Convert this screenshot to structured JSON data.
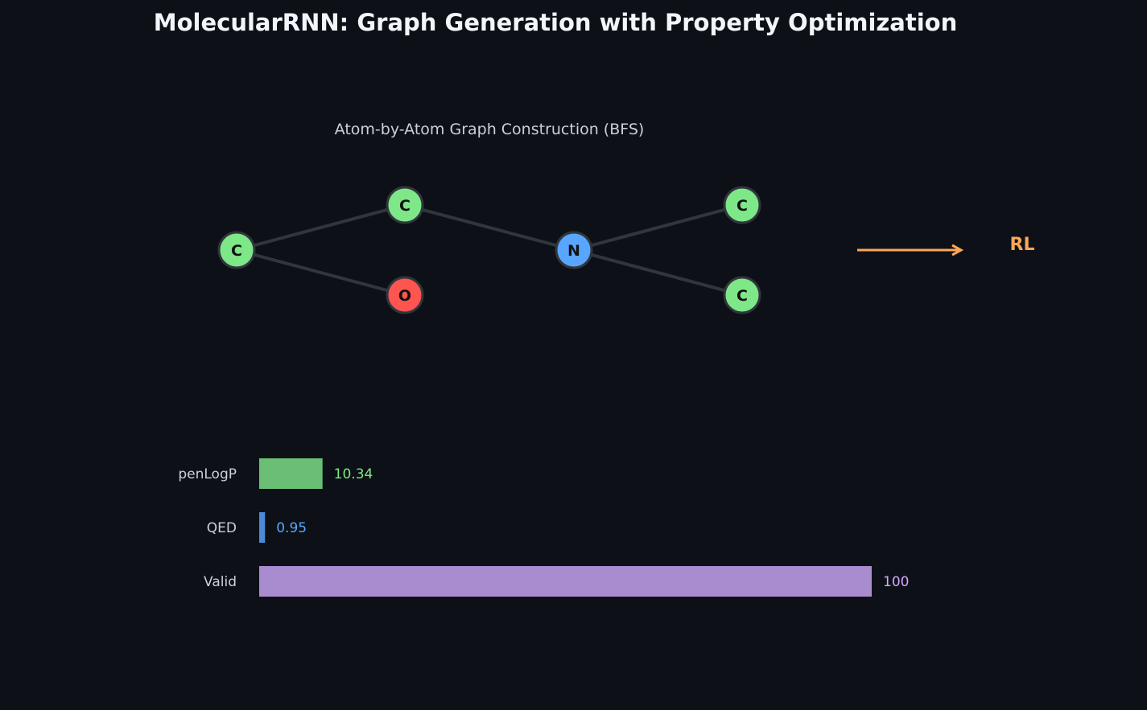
{
  "title": "MolecularRNN: Graph Generation with Property Optimization",
  "graph": {
    "subtitle": "Atom-by-Atom Graph Construction (BFS)",
    "atoms": [
      {
        "id": 0,
        "label": "C",
        "color": "#7ee787"
      },
      {
        "id": 1,
        "label": "C",
        "color": "#7ee787"
      },
      {
        "id": 2,
        "label": "O",
        "color": "#ff5550"
      },
      {
        "id": 3,
        "label": "N",
        "color": "#58a6ff"
      },
      {
        "id": 4,
        "label": "C",
        "color": "#7ee787"
      },
      {
        "id": 5,
        "label": "C",
        "color": "#7ee787"
      }
    ],
    "bonds": [
      [
        0,
        1
      ],
      [
        0,
        2
      ],
      [
        1,
        3
      ],
      [
        3,
        4
      ],
      [
        3,
        5
      ]
    ],
    "arrow_label": "RL",
    "arrow_color": "#ffa657"
  },
  "chart_data": {
    "type": "bar",
    "orientation": "horizontal",
    "categories": [
      "penLogP",
      "QED",
      "Valid"
    ],
    "values": [
      10.34,
      0.95,
      100
    ],
    "value_labels": [
      "10.34",
      "0.95",
      "100"
    ],
    "colors": [
      "#6abf75",
      "#4a8ad6",
      "#a98bd0"
    ],
    "label_colors": [
      "#7ee787",
      "#58a6ff",
      "#d2a8ff"
    ],
    "xlim": [
      0,
      100
    ]
  }
}
